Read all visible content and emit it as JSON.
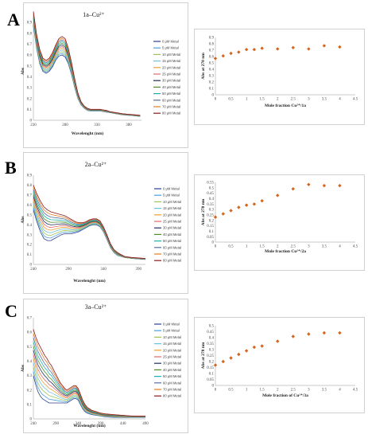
{
  "panels": [
    {
      "letter": "A",
      "spectrum": {
        "type": "line",
        "title": "1a–Cu²⁺",
        "xlabel": "Wavelenght (nm)",
        "ylabel": "Abs",
        "xlim": [
          230,
          400
        ],
        "ylim": [
          0,
          0.9
        ],
        "xticks": [
          230,
          280,
          330,
          380
        ],
        "yticks": [
          0,
          0.1,
          0.2,
          0.3,
          0.4,
          0.5,
          0.6,
          0.7,
          0.8,
          0.9
        ],
        "x": [
          230,
          235,
          240,
          245,
          250,
          255,
          260,
          265,
          270,
          275,
          280,
          285,
          290,
          295,
          300,
          305,
          310,
          315,
          320,
          325,
          330,
          335,
          340,
          345,
          350,
          355,
          360,
          370,
          380,
          390,
          398
        ],
        "legend": [
          "0 μM Metal",
          "5 μM Metal",
          "10 μM Metal",
          "15 μM Metal",
          "20 μM Metal",
          "25 μM Metal",
          "30 μM Metal",
          "40 μM Metal",
          "50 μM Metal",
          "60 μM Metal",
          "70 μM Metal",
          "80 μM Metal"
        ],
        "shape": [
          1.0,
          0.79,
          0.65,
          0.57,
          0.55,
          0.57,
          0.62,
          0.69,
          0.75,
          0.77,
          0.75,
          0.66,
          0.53,
          0.38,
          0.25,
          0.17,
          0.13,
          0.11,
          0.1,
          0.1,
          0.1,
          0.1,
          0.095,
          0.09,
          0.08,
          0.075,
          0.07,
          0.06,
          0.055,
          0.05,
          0.045
        ],
        "shape_min": [
          0.87,
          0.66,
          0.52,
          0.45,
          0.43,
          0.45,
          0.49,
          0.55,
          0.59,
          0.6,
          0.58,
          0.52,
          0.42,
          0.3,
          0.2,
          0.14,
          0.11,
          0.09,
          0.085,
          0.085,
          0.085,
          0.085,
          0.08,
          0.075,
          0.07,
          0.065,
          0.06,
          0.05,
          0.045,
          0.04,
          0.035
        ]
      },
      "scatter": {
        "type": "scatter",
        "xlabel": "Mole fraction Cu²⁺/1a",
        "ylabel": "Abs at 270 nm",
        "xlim": [
          0,
          4.5
        ],
        "ylim": [
          0,
          0.9
        ],
        "xticks": [
          0,
          0.5,
          1,
          1.5,
          2,
          2.5,
          3,
          3.5,
          4,
          4.5
        ],
        "yticks": [
          0,
          0.1,
          0.2,
          0.3,
          0.4,
          0.5,
          0.6,
          0.7,
          0.8,
          0.9
        ],
        "x": [
          0,
          0.25,
          0.5,
          0.75,
          1,
          1.25,
          1.5,
          2,
          2.5,
          3,
          3.5,
          4
        ],
        "y": [
          0.57,
          0.61,
          0.65,
          0.67,
          0.71,
          0.71,
          0.73,
          0.72,
          0.74,
          0.72,
          0.77,
          0.75
        ]
      }
    },
    {
      "letter": "B",
      "spectrum": {
        "type": "line",
        "title": "2a–Cu²⁺",
        "xlabel": "Wavelenght (nm)",
        "ylabel": "Abs",
        "xlim": [
          240,
          400
        ],
        "ylim": [
          0,
          0.9
        ],
        "xticks": [
          240,
          290,
          340,
          390
        ],
        "yticks": [
          0,
          0.1,
          0.2,
          0.3,
          0.4,
          0.5,
          0.6,
          0.7,
          0.8,
          0.9
        ],
        "x": [
          240,
          245,
          250,
          255,
          260,
          265,
          270,
          275,
          280,
          285,
          290,
          295,
          300,
          305,
          310,
          315,
          320,
          325,
          330,
          335,
          340,
          345,
          350,
          355,
          360,
          365,
          370,
          380,
          390,
          400
        ],
        "legend": [
          "0 μM Metal",
          "5 μM Metal",
          "10 μM Metal",
          "15 μM Metal",
          "20 μM Metal",
          "25 μM Metal",
          "30 μM Metal",
          "40 μM Metal",
          "50 μM Metal",
          "60 μM Metal",
          "70 μM Metal",
          "80 μM Metal"
        ],
        "shape": [
          0.8,
          0.71,
          0.64,
          0.58,
          0.55,
          0.53,
          0.52,
          0.51,
          0.5,
          0.49,
          0.47,
          0.45,
          0.43,
          0.42,
          0.42,
          0.43,
          0.45,
          0.46,
          0.46,
          0.44,
          0.38,
          0.3,
          0.21,
          0.15,
          0.12,
          0.1,
          0.08,
          0.07,
          0.065,
          0.06
        ],
        "shape_min": [
          0.55,
          0.43,
          0.33,
          0.26,
          0.24,
          0.24,
          0.26,
          0.28,
          0.3,
          0.31,
          0.31,
          0.31,
          0.32,
          0.33,
          0.35,
          0.37,
          0.39,
          0.4,
          0.4,
          0.38,
          0.33,
          0.25,
          0.17,
          0.12,
          0.09,
          0.08,
          0.07,
          0.06,
          0.055,
          0.05
        ]
      },
      "scatter": {
        "type": "scatter",
        "xlabel": "Mole fraction Cu²⁺/2a",
        "ylabel": "Abs at 270 nm",
        "xlim": [
          0,
          4.5
        ],
        "ylim": [
          0,
          0.55
        ],
        "xticks": [
          0,
          0.5,
          1,
          1.5,
          2,
          2.5,
          3,
          3.5,
          4,
          4.5
        ],
        "yticks": [
          0,
          0.05,
          0.1,
          0.15,
          0.2,
          0.25,
          0.3,
          0.35,
          0.4,
          0.45,
          0.5,
          0.55
        ],
        "x": [
          0,
          0.25,
          0.5,
          0.75,
          1,
          1.25,
          1.5,
          2,
          2.5,
          3,
          3.5,
          4
        ],
        "y": [
          0.23,
          0.26,
          0.29,
          0.32,
          0.34,
          0.35,
          0.38,
          0.43,
          0.49,
          0.53,
          0.52,
          0.52
        ]
      }
    },
    {
      "letter": "C",
      "spectrum": {
        "type": "line",
        "title": "3a–Cu²⁺",
        "xlabel": "Wavelenght (nm)",
        "ylabel": "Abs",
        "xlim": [
          240,
          490
        ],
        "ylim": [
          0,
          0.7
        ],
        "xticks": [
          240,
          290,
          340,
          390,
          440,
          490
        ],
        "yticks": [
          0,
          0.1,
          0.2,
          0.3,
          0.4,
          0.5,
          0.6,
          0.7
        ],
        "x": [
          240,
          245,
          250,
          255,
          260,
          265,
          270,
          275,
          280,
          285,
          290,
          295,
          300,
          305,
          310,
          315,
          320,
          325,
          330,
          335,
          340,
          345,
          350,
          355,
          360,
          370,
          380,
          390,
          400,
          420,
          440,
          460,
          480,
          490
        ],
        "legend": [
          "0 μM Metal",
          "5 μM Metal",
          "10 μM Metal",
          "15 μM Metal",
          "20 μM Metal",
          "25 μM Metal",
          "30 μM Metal",
          "40 μM Metal",
          "50 μM Metal",
          "60 μM Metal",
          "70 μM Metal",
          "80 μM Metal"
        ],
        "shape": [
          0.62,
          0.57,
          0.53,
          0.5,
          0.47,
          0.44,
          0.42,
          0.39,
          0.37,
          0.34,
          0.31,
          0.28,
          0.25,
          0.23,
          0.21,
          0.2,
          0.21,
          0.22,
          0.23,
          0.23,
          0.21,
          0.17,
          0.13,
          0.1,
          0.08,
          0.06,
          0.05,
          0.04,
          0.035,
          0.03,
          0.025,
          0.02,
          0.02,
          0.02
        ],
        "shape_min": [
          0.3,
          0.24,
          0.19,
          0.16,
          0.14,
          0.13,
          0.12,
          0.11,
          0.11,
          0.11,
          0.11,
          0.11,
          0.11,
          0.11,
          0.11,
          0.11,
          0.12,
          0.13,
          0.14,
          0.14,
          0.13,
          0.1,
          0.07,
          0.05,
          0.04,
          0.03,
          0.025,
          0.02,
          0.015,
          0.01,
          0.01,
          0.01,
          0.01,
          0.01
        ]
      },
      "scatter": {
        "type": "scatter",
        "xlabel": "Mole fraction of Cu²⁺/3a",
        "ylabel": "Abs at 270 nm",
        "xlim": [
          0,
          4.5
        ],
        "ylim": [
          0,
          0.5
        ],
        "xticks": [
          0,
          0.5,
          1,
          1.5,
          2,
          2.5,
          3,
          3.5,
          4,
          4.5
        ],
        "yticks": [
          0,
          0.05,
          0.1,
          0.15,
          0.2,
          0.25,
          0.3,
          0.35,
          0.4,
          0.45,
          0.5
        ],
        "x": [
          0,
          0.25,
          0.5,
          0.75,
          1,
          1.25,
          1.5,
          2,
          2.5,
          3,
          3.5,
          4
        ],
        "y": [
          0.17,
          0.2,
          0.23,
          0.26,
          0.29,
          0.32,
          0.33,
          0.37,
          0.41,
          0.43,
          0.44,
          0.44
        ]
      }
    }
  ],
  "series_colors": [
    "#2f3f8f",
    "#4aa0dc",
    "#9dc35a",
    "#6fc1e0",
    "#f0a030",
    "#e06a6a",
    "#203060",
    "#4d8f2a",
    "#20b0b0",
    "#5a6fa0",
    "#e67e22",
    "#8b1a1a"
  ],
  "marker_color": "#d3661c",
  "chart_data": [
    {
      "type": "line",
      "title": "1a–Cu²⁺",
      "xlabel": "Wavelenght (nm)",
      "ylabel": "Abs",
      "xlim": [
        230,
        400
      ],
      "ylim": [
        0,
        0.9
      ]
    },
    {
      "type": "scatter",
      "xlabel": "Mole fraction Cu²⁺/1a",
      "ylabel": "Abs at 270 nm",
      "x": [
        0,
        0.25,
        0.5,
        0.75,
        1,
        1.25,
        1.5,
        2,
        2.5,
        3,
        3.5,
        4
      ],
      "y": [
        0.57,
        0.61,
        0.65,
        0.67,
        0.71,
        0.71,
        0.73,
        0.72,
        0.74,
        0.72,
        0.77,
        0.75
      ]
    },
    {
      "type": "line",
      "title": "2a–Cu²⁺",
      "xlabel": "Wavelenght (nm)",
      "ylabel": "Abs",
      "xlim": [
        240,
        400
      ],
      "ylim": [
        0,
        0.9
      ]
    },
    {
      "type": "scatter",
      "xlabel": "Mole fraction Cu²⁺/2a",
      "ylabel": "Abs at 270 nm",
      "x": [
        0,
        0.25,
        0.5,
        0.75,
        1,
        1.25,
        1.5,
        2,
        2.5,
        3,
        3.5,
        4
      ],
      "y": [
        0.23,
        0.26,
        0.29,
        0.32,
        0.34,
        0.35,
        0.38,
        0.43,
        0.49,
        0.53,
        0.52,
        0.52
      ]
    },
    {
      "type": "line",
      "title": "3a–Cu²⁺",
      "xlabel": "Wavelenght (nm)",
      "ylabel": "Abs",
      "xlim": [
        240,
        490
      ],
      "ylim": [
        0,
        0.7
      ]
    },
    {
      "type": "scatter",
      "xlabel": "Mole fraction of Cu²⁺/3a",
      "ylabel": "Abs at 270 nm",
      "x": [
        0,
        0.25,
        0.5,
        0.75,
        1,
        1.25,
        1.5,
        2,
        2.5,
        3,
        3.5,
        4
      ],
      "y": [
        0.17,
        0.2,
        0.23,
        0.26,
        0.29,
        0.32,
        0.33,
        0.37,
        0.41,
        0.43,
        0.44,
        0.44
      ]
    }
  ]
}
